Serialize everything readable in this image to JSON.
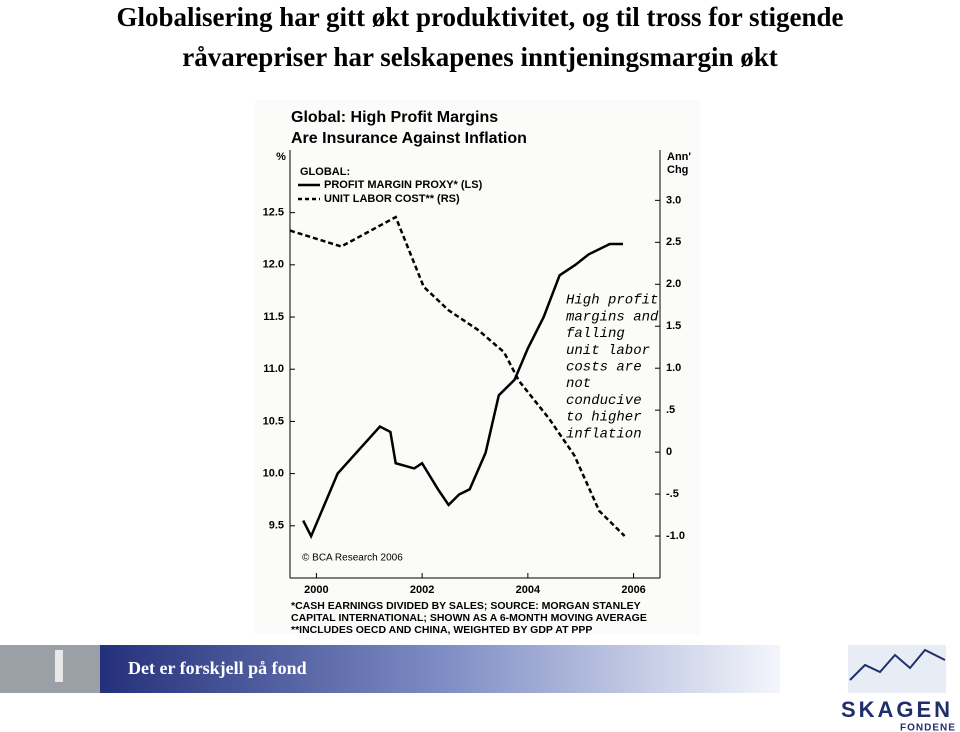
{
  "slide": {
    "title_lines": [
      "Globalisering har gitt økt produktivitet, og til tross for stigende",
      "råvarepriser har selskapenes inntjeningsmargin økt"
    ]
  },
  "footer": {
    "tagline": "Det er forskjell på fond"
  },
  "logo": {
    "name": "SKAGEN",
    "sub": "FONDENE"
  },
  "chart_data": {
    "type": "line",
    "title_lines": [
      "Global: High Profit Margins",
      "Are Insurance Against Inflation"
    ],
    "y_label": "%",
    "y2_label_lines": [
      "Ann'",
      "Chg"
    ],
    "legend_title": "GLOBAL:",
    "xlim": [
      1999.5,
      2006.5
    ],
    "xticks": [
      2000,
      2002,
      2004,
      2006
    ],
    "ylim": [
      9.0,
      13.1
    ],
    "yticks": [
      9.5,
      {
        "value": 10,
        "label": "10.0"
      },
      10.5,
      {
        "value": 11,
        "label": "11.0"
      },
      11.5,
      {
        "value": 12,
        "label": "12.0"
      },
      12.5
    ],
    "y2lim": [
      -1.5,
      3.6
    ],
    "y2ticks": [
      {
        "value": 3,
        "label": "3.0"
      },
      2.5,
      {
        "value": 2,
        "label": "2.0"
      },
      1.5,
      {
        "value": 1,
        "label": "1.0"
      },
      {
        "value": 0.5,
        "label": ".5"
      },
      0,
      {
        "value": -0.5,
        "label": "-.5"
      },
      {
        "value": -1,
        "label": "-1.0"
      }
    ],
    "grid": false,
    "series": [
      {
        "name": "PROFIT MARGIN PROXY* (LS)",
        "color": "#000000",
        "dashed": false,
        "axis": "y",
        "x": [
          1999.75,
          1999.9,
          2000.4,
          2001.2,
          2001.4,
          2001.5,
          2001.85,
          2002.0,
          2002.3,
          2002.5,
          2002.7,
          2002.9,
          2003.2,
          2003.45,
          2003.75,
          2004.0,
          2004.3,
          2004.6,
          2004.9,
          2005.15,
          2005.55,
          2005.8
        ],
        "values": [
          9.55,
          9.4,
          10.0,
          10.45,
          10.4,
          10.1,
          10.05,
          10.1,
          9.85,
          9.7,
          9.8,
          9.85,
          10.2,
          10.75,
          10.9,
          11.2,
          11.5,
          11.9,
          12.0,
          12.1,
          12.2,
          12.2
        ]
      },
      {
        "name": "UNIT LABOR COST** (RS)",
        "color": "#000000",
        "dashed": true,
        "axis": "y2",
        "x": [
          1999.5,
          2000.47,
          2001.5,
          2002.03,
          2002.5,
          2003.07,
          2003.55,
          2003.83,
          2004.4,
          2004.88,
          2005.35,
          2005.83
        ],
        "values": [
          2.64,
          2.45,
          2.8,
          1.97,
          1.69,
          1.45,
          1.19,
          0.85,
          0.4,
          -0.04,
          -0.7,
          -1.0
        ]
      }
    ],
    "annotation_lines": [
      "High profit",
      "margins and",
      "falling",
      "unit labor",
      "costs are",
      "not",
      "conducive",
      "to higher",
      "inflation"
    ],
    "credit": "© BCA Research 2006",
    "footnotes": [
      "*CASH EARNINGS DIVIDED BY SALES; SOURCE: MORGAN STANLEY",
      "CAPITAL INTERNATIONAL; SHOWN AS A 6-MONTH MOVING AVERAGE",
      "**INCLUDES OECD AND CHINA, WEIGHTED BY GDP AT PPP"
    ]
  }
}
